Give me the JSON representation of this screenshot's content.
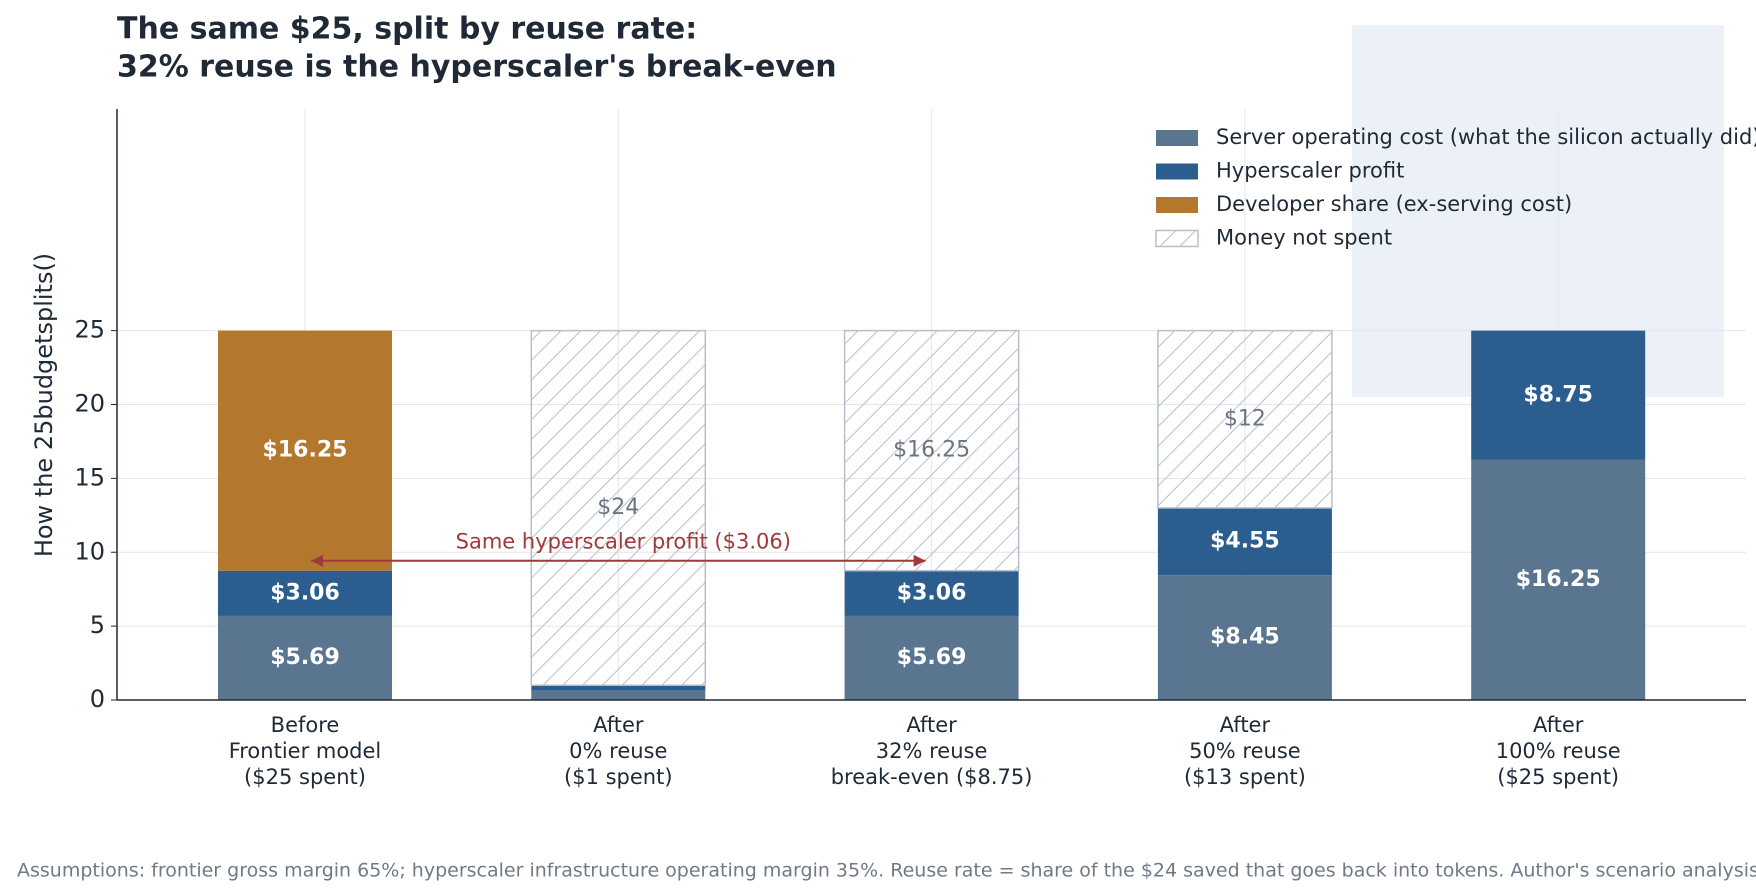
{
  "chart_data": {
    "type": "stacked_bar",
    "title": "The same $25, split by reuse rate:",
    "subtitle": "32% reuse is the hyperscaler's break-even",
    "y_label": "How the 25budgetsplits()",
    "categories": [
      "Before\nFrontier model\n($25 spent)",
      "After\n0% reuse\n($1 spent)",
      "After\n32% reuse\nbreak-even ($8.75)",
      "After\n50% reuse\n($13 spent)",
      "After\n100% reuse\n($25 spent)"
    ],
    "series": [
      {
        "name": "Server operating cost (what the silicon actually did)",
        "color": "#5a7590",
        "values": [
          5.69,
          0.65,
          5.69,
          8.45,
          16.25
        ],
        "value_labels": [
          "$5.69",
          null,
          "$5.69",
          "$8.45",
          "$16.25"
        ]
      },
      {
        "name": "Hyperscaler profit",
        "color": "#2c5d8f",
        "values": [
          3.06,
          0.35,
          3.06,
          4.55,
          8.75
        ],
        "value_labels": [
          "$3.06",
          null,
          "$3.06",
          "$4.55",
          "$8.75"
        ]
      },
      {
        "name": "Developer share (ex-serving cost)",
        "color": "#b3772d",
        "values": [
          16.25,
          0,
          0,
          0,
          0
        ],
        "value_labels": [
          "$16.25",
          null,
          null,
          null,
          null
        ]
      },
      {
        "name": "Money not spent",
        "color": "#b7bfcc",
        "hatch": true,
        "values": [
          0,
          24,
          16.25,
          12,
          0
        ],
        "value_labels": [
          null,
          "$24",
          "$16.25",
          "$12",
          null
        ]
      }
    ],
    "annotation": "Same hyperscaler profit ($3.06)",
    "annotation_color": "#a03a3a",
    "ylim": [
      0,
      40
    ],
    "yticks": [
      0,
      5,
      10,
      15,
      20,
      25
    ],
    "grid": true,
    "legend": "upper right",
    "footnote": "Assumptions: frontier gross margin 65%; hyperscaler infrastructure operating margin 35%. Reuse rate = share of the $24 saved that goes back into tokens. Author's scenario analysis."
  }
}
